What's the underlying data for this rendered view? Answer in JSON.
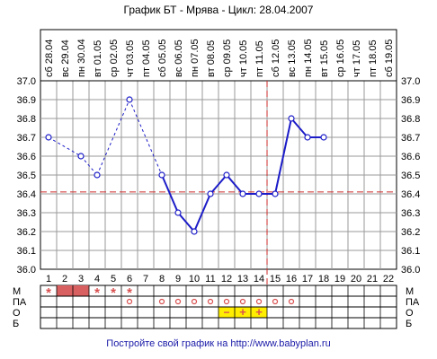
{
  "chart_data": {
    "type": "line",
    "title": "График БТ - Мрява - Цикл: 28.04.2007",
    "dates": [
      "сб 28.04",
      "вс 29.04",
      "пн 30.04",
      "вт 01.05",
      "ср 02.05",
      "чт 03.05",
      "пт 04.05",
      "сб 05.05",
      "вс 06.05",
      "пн 07.05",
      "вт 08.05",
      "ср 09.05",
      "чт 10.05",
      "пт 11.05",
      "сб 12.05",
      "вс 13.05",
      "пн 14.05",
      "вт 15.05",
      "ср 16.05",
      "чт 17.05",
      "пт 18.05",
      "сб 19.05"
    ],
    "days": [
      1,
      2,
      3,
      4,
      5,
      6,
      7,
      8,
      9,
      10,
      11,
      12,
      13,
      14,
      15,
      16,
      17,
      18,
      19,
      20,
      21,
      22
    ],
    "yticks": [
      "36.0",
      "36.1",
      "36.2",
      "36.3",
      "36.4",
      "36.5",
      "36.6",
      "36.7",
      "36.8",
      "36.9",
      "37.0"
    ],
    "ylim": [
      36.0,
      37.0
    ],
    "temperatures": [
      36.7,
      null,
      36.6,
      36.5,
      null,
      36.9,
      null,
      36.5,
      36.3,
      36.2,
      36.4,
      36.5,
      36.4,
      36.4,
      36.4,
      36.8,
      36.7,
      36.7,
      null,
      null,
      null,
      null
    ],
    "dashed_days": [
      1,
      3,
      4,
      6,
      8
    ],
    "cover_line": 36.41,
    "ovulation_day": 14,
    "colors": {
      "line": "#1c1cc8",
      "cover_line": "#cc2a2a",
      "grid": "#9a9a9a",
      "menses_fill": "#d96060",
      "mark": "#d95050",
      "lh_fill": "#ffee00",
      "footer": "#1a1aa8"
    },
    "rows": [
      {
        "label": "М",
        "star_days": [
          1,
          4,
          5,
          6
        ],
        "filled_days": [
          2,
          3
        ]
      },
      {
        "label": "ПА",
        "circle_days": [
          6,
          8,
          9,
          10,
          11,
          12,
          13,
          14,
          15,
          16
        ]
      },
      {
        "label": "О",
        "minus_days": [
          12
        ],
        "plus_days": [
          13,
          14
        ],
        "highlight_days": [
          12,
          13,
          14
        ]
      },
      {
        "label": "Б"
      }
    ],
    "footer": "Постройте свой график на http://www.babyplan.ru"
  }
}
